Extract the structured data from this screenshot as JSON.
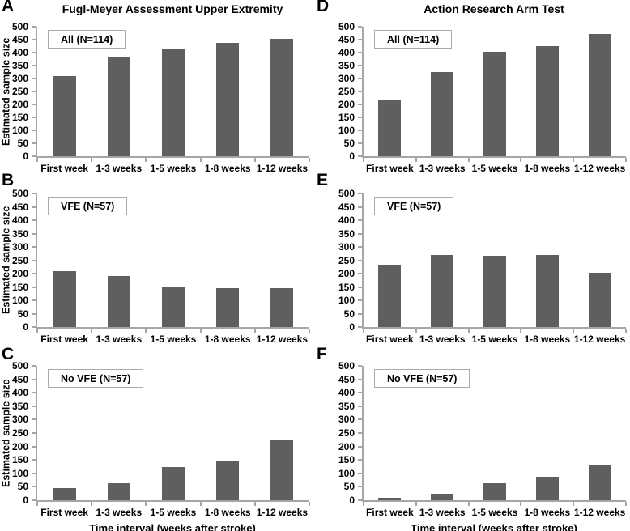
{
  "figure": {
    "x_axis_title": "Time interval (weeks after stroke)",
    "y_axis_title": "Estimated sample size",
    "bar_color": "#5f5f5f",
    "axis_color": "#a6a6a6",
    "y_ticks": [
      0,
      50,
      100,
      150,
      200,
      250,
      300,
      350,
      400,
      450,
      500
    ]
  },
  "chart_data": [
    {
      "panel": "A",
      "type": "bar",
      "title": "Fugl-Meyer Assessment Upper Extremity",
      "legend": "All (N=114)",
      "categories": [
        "First week",
        "1-3 weeks",
        "1-5 weeks",
        "1-8 weeks",
        "1-12 weeks"
      ],
      "values": [
        308,
        385,
        411,
        438,
        453
      ],
      "ylabel": "Estimated sample size",
      "ylim": [
        0,
        500
      ]
    },
    {
      "panel": "B",
      "type": "bar",
      "title": "",
      "legend": "VFE (N=57)",
      "categories": [
        "First week",
        "1-3 weeks",
        "1-5 weeks",
        "1-8 weeks",
        "1-12 weeks"
      ],
      "values": [
        210,
        190,
        148,
        146,
        144
      ],
      "ylabel": "Estimated sample size",
      "ylim": [
        0,
        500
      ]
    },
    {
      "panel": "C",
      "type": "bar",
      "title": "",
      "legend": "No VFE (N=57)",
      "categories": [
        "First week",
        "1-3 weeks",
        "1-5 weeks",
        "1-8 weeks",
        "1-12 weeks"
      ],
      "values": [
        45,
        63,
        125,
        146,
        222
      ],
      "ylabel": "Estimated sample size",
      "xlabel": "Time interval (weeks after stroke)",
      "ylim": [
        0,
        500
      ]
    },
    {
      "panel": "D",
      "type": "bar",
      "title": "Action Research Arm Test",
      "legend": "All (N=114)",
      "categories": [
        "First week",
        "1-3 weeks",
        "1-5 weeks",
        "1-8 weeks",
        "1-12 weeks"
      ],
      "values": [
        219,
        324,
        404,
        426,
        472
      ],
      "ylim": [
        0,
        500
      ]
    },
    {
      "panel": "E",
      "type": "bar",
      "title": "",
      "legend": "VFE (N=57)",
      "categories": [
        "First week",
        "1-3 weeks",
        "1-5 weeks",
        "1-8 weeks",
        "1-12 weeks"
      ],
      "values": [
        233,
        270,
        267,
        270,
        204
      ],
      "ylim": [
        0,
        500
      ]
    },
    {
      "panel": "F",
      "type": "bar",
      "title": "",
      "legend": "No VFE (N=57)",
      "categories": [
        "First week",
        "1-3 weeks",
        "1-5 weeks",
        "1-8 weeks",
        "1-12 weeks"
      ],
      "values": [
        10,
        24,
        62,
        86,
        130
      ],
      "xlabel": "Time interval (weeks after stroke)",
      "ylim": [
        0,
        500
      ]
    }
  ]
}
